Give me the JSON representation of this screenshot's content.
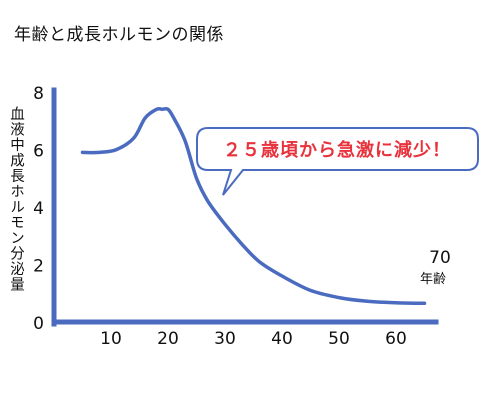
{
  "chart_data": {
    "type": "line",
    "title": "年齢と成長ホルモンの関係",
    "ylabel": "血液中成長ホルモン分泌量",
    "x_unit_label": "年齢",
    "xlim": [
      0,
      70
    ],
    "ylim": [
      0,
      8
    ],
    "x_ticks": [
      "10",
      "20",
      "30",
      "40",
      "50",
      "60",
      "70"
    ],
    "y_ticks": [
      "0",
      "2",
      "4",
      "6",
      "8"
    ],
    "annotation": "２５歳頃から急激に減少！",
    "grid": false,
    "line_color": "#4a6bbf",
    "axis_color": "#4a6bbf",
    "series": [
      {
        "x": [
          5,
          8,
          11,
          14,
          16,
          18,
          19,
          20,
          21,
          23,
          25,
          27,
          30,
          33,
          36,
          40,
          45,
          50,
          55,
          60,
          65
        ],
        "y": [
          5.9,
          5.9,
          6.0,
          6.4,
          7.1,
          7.4,
          7.4,
          7.4,
          7.1,
          6.3,
          5.0,
          4.2,
          3.4,
          2.7,
          2.1,
          1.6,
          1.1,
          0.85,
          0.72,
          0.67,
          0.65
        ]
      }
    ]
  }
}
